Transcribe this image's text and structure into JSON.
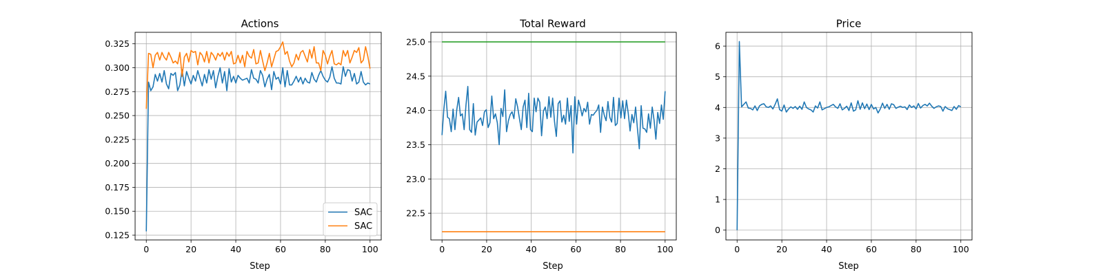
{
  "chart_data": [
    {
      "type": "line",
      "title": "Actions",
      "xlabel": "Step",
      "ylabel": "",
      "xlim": [
        -5,
        105
      ],
      "ylim": [
        0.12,
        0.337
      ],
      "xticks": [
        0,
        20,
        40,
        60,
        80,
        100
      ],
      "yticks": [
        0.125,
        0.15,
        0.175,
        0.2,
        0.225,
        0.25,
        0.275,
        0.3,
        0.325
      ],
      "ytick_labels": [
        "0.125",
        "0.150",
        "0.175",
        "0.200",
        "0.225",
        "0.250",
        "0.275",
        "0.300",
        "0.325"
      ],
      "grid": true,
      "legend": {
        "position": "lower right",
        "entries": [
          "SAC",
          "SAC"
        ]
      },
      "series": [
        {
          "name": "SAC",
          "color": "#1f77b4",
          "values": [
            0.129,
            0.285,
            0.276,
            0.28,
            0.293,
            0.286,
            0.294,
            0.285,
            0.297,
            0.283,
            0.278,
            0.294,
            0.292,
            0.295,
            0.276,
            0.282,
            0.298,
            0.281,
            0.296,
            0.289,
            0.283,
            0.292,
            0.286,
            0.297,
            0.289,
            0.281,
            0.293,
            0.284,
            0.298,
            0.288,
            0.297,
            0.279,
            0.291,
            0.3,
            0.284,
            0.296,
            0.276,
            0.299,
            0.285,
            0.291,
            0.284,
            0.292,
            0.289,
            0.287,
            0.288,
            0.289,
            0.284,
            0.298,
            0.289,
            0.288,
            0.284,
            0.297,
            0.292,
            0.28,
            0.288,
            0.293,
            0.277,
            0.296,
            0.288,
            0.29,
            0.283,
            0.3,
            0.28,
            0.297,
            0.282,
            0.282,
            0.286,
            0.291,
            0.285,
            0.29,
            0.283,
            0.289,
            0.285,
            0.284,
            0.295,
            0.288,
            0.285,
            0.292,
            0.297,
            0.291,
            0.287,
            0.285,
            0.29,
            0.301,
            0.289,
            0.284,
            0.284,
            0.283,
            0.301,
            0.291,
            0.298,
            0.297,
            0.286,
            0.294,
            0.283,
            0.285,
            0.296,
            0.285,
            0.282,
            0.284,
            0.283
          ]
        },
        {
          "name": "SAC",
          "color": "#ff7f0e",
          "values": [
            0.257,
            0.315,
            0.314,
            0.3,
            0.313,
            0.316,
            0.308,
            0.316,
            0.311,
            0.308,
            0.316,
            0.311,
            0.305,
            0.307,
            0.304,
            0.316,
            0.291,
            0.311,
            0.315,
            0.306,
            0.318,
            0.316,
            0.317,
            0.303,
            0.316,
            0.313,
            0.306,
            0.317,
            0.305,
            0.316,
            0.313,
            0.308,
            0.315,
            0.312,
            0.316,
            0.308,
            0.316,
            0.312,
            0.317,
            0.304,
            0.305,
            0.313,
            0.305,
            0.313,
            0.301,
            0.317,
            0.312,
            0.31,
            0.319,
            0.304,
            0.305,
            0.318,
            0.307,
            0.297,
            0.305,
            0.315,
            0.301,
            0.309,
            0.317,
            0.318,
            0.322,
            0.327,
            0.314,
            0.317,
            0.307,
            0.301,
            0.305,
            0.314,
            0.308,
            0.316,
            0.318,
            0.312,
            0.306,
            0.319,
            0.31,
            0.322,
            0.305,
            0.305,
            0.297,
            0.318,
            0.313,
            0.304,
            0.312,
            0.318,
            0.304,
            0.303,
            0.305,
            0.303,
            0.318,
            0.312,
            0.318,
            0.305,
            0.311,
            0.318,
            0.316,
            0.321,
            0.305,
            0.308,
            0.322,
            0.312,
            0.299
          ]
        }
      ]
    },
    {
      "type": "line",
      "title": "Total Reward",
      "xlabel": "Step",
      "ylabel": "",
      "xlim": [
        -5,
        105
      ],
      "ylim": [
        22.11,
        25.14
      ],
      "xticks": [
        0,
        20,
        40,
        60,
        80,
        100
      ],
      "yticks": [
        22.5,
        23.0,
        23.5,
        24.0,
        24.5,
        25.0
      ],
      "ytick_labels": [
        "22.5",
        "23.0",
        "23.5",
        "24.0",
        "24.5",
        "25.0"
      ],
      "grid": true,
      "series": [
        {
          "color": "#1f77b4",
          "values": [
            23.64,
            24.02,
            24.28,
            23.9,
            23.88,
            23.69,
            24.02,
            23.72,
            24.01,
            24.19,
            23.92,
            23.95,
            23.72,
            24.08,
            24.35,
            23.72,
            23.68,
            24.1,
            23.64,
            23.83,
            23.86,
            23.89,
            23.78,
            23.98,
            24.01,
            23.75,
            23.82,
            24.21,
            23.88,
            23.95,
            23.82,
            23.5,
            24.03,
            23.91,
            24.3,
            23.69,
            23.85,
            23.94,
            23.98,
            23.88,
            24.17,
            24.05,
            23.88,
            23.72,
            24.05,
            24.15,
            23.75,
            24.25,
            23.72,
            23.69,
            24.18,
            23.98,
            24.18,
            24.12,
            23.63,
            23.99,
            24.05,
            23.88,
            24.2,
            23.9,
            24.18,
            23.84,
            23.62,
            24.1,
            24.14,
            23.83,
            23.93,
            23.8,
            24.18,
            23.84,
            24.07,
            23.38,
            24.2,
            23.8,
            24.15,
            24.05,
            23.92,
            24.03,
            23.98,
            24.12,
            23.8,
            23.94,
            23.93,
            23.97,
            24.0,
            24.08,
            23.68,
            24.05,
            23.93,
            23.85,
            24.13,
            23.9,
            23.83,
            24.19,
            23.78,
            23.81,
            24.18,
            23.89,
            24.14,
            23.88,
            24.15,
            23.96,
            23.7,
            23.94,
            23.82,
            24.05,
            23.73,
            23.44,
            24.07,
            23.74,
            23.73,
            23.68,
            23.95,
            23.74,
            24.05,
            23.86,
            23.58,
            23.97,
            23.81,
            24.08,
            23.87,
            24.28
          ]
        },
        {
          "color": "#2ca02c",
          "values": [
            25.0,
            25.0
          ]
        },
        {
          "color": "#ff7f0e",
          "values": [
            22.23,
            22.23
          ]
        }
      ]
    },
    {
      "type": "line",
      "title": "Price",
      "xlabel": "Step",
      "ylabel": "",
      "xlim": [
        -5,
        105
      ],
      "ylim": [
        -0.32,
        6.45
      ],
      "xticks": [
        0,
        20,
        40,
        60,
        80,
        100
      ],
      "yticks": [
        0,
        1,
        2,
        3,
        4,
        5,
        6
      ],
      "ytick_labels": [
        "0",
        "1",
        "2",
        "3",
        "4",
        "5",
        "6"
      ],
      "grid": true,
      "series": [
        {
          "color": "#1f77b4",
          "values": [
            0.0,
            6.15,
            4.02,
            4.1,
            4.18,
            3.98,
            3.97,
            3.92,
            4.05,
            3.9,
            4.05,
            4.1,
            4.12,
            4.02,
            4.0,
            4.05,
            3.95,
            4.1,
            4.28,
            3.93,
            3.88,
            4.08,
            3.85,
            3.95,
            4.02,
            3.97,
            4.03,
            3.94,
            4.04,
            3.94,
            4.18,
            4.0,
            3.95,
            3.92,
            3.85,
            4.05,
            3.98,
            4.18,
            3.92,
            3.96,
            4.0,
            4.02,
            4.06,
            4.1,
            4.02,
            3.97,
            4.12,
            3.92,
            3.97,
            4.04,
            3.9,
            4.15,
            3.88,
            3.92,
            4.22,
            3.94,
            4.15,
            3.96,
            4.11,
            3.93,
            4.1,
            3.95,
            4.0,
            3.82,
            3.95,
            4.14,
            3.97,
            4.1,
            3.94,
            4.12,
            4.09,
            3.97,
            4.01,
            4.04,
            4.0,
            4.02,
            3.93,
            4.08,
            4.0,
            4.05,
            3.95,
            4.13,
            3.98,
            4.06,
            4.1,
            4.05,
            4.14,
            4.04,
            3.97,
            4.02,
            4.05,
            4.03,
            3.88,
            4.03,
            3.96,
            3.93,
            3.9,
            4.03,
            3.94,
            4.06,
            4.02
          ]
        }
      ]
    }
  ]
}
